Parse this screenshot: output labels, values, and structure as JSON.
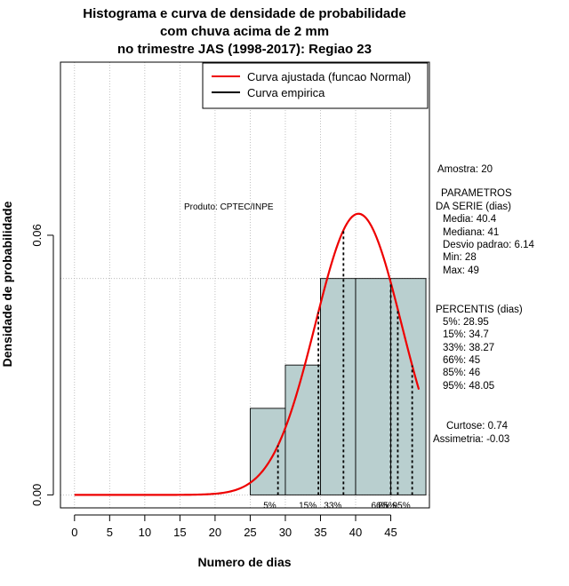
{
  "title_lines": [
    "Histograma e curva de densidade de probabilidade",
    "com chuva acima de 2 mm",
    "no trimestre JAS (1998-2017): Regiao 23"
  ],
  "product_label": "Produto: CPTEC/INPE",
  "side_panel": {
    "sample": "Amostra: 20",
    "params_title_1": "PARAMETROS",
    "params_title_2": "DA SERIE (dias)",
    "params": [
      "Media: 40.4",
      "Mediana: 41",
      "Desvio padrao: 6.14",
      "Min: 28",
      "Max: 49"
    ],
    "percentis_title": "PERCENTIS (dias)",
    "percentis": [
      "5%: 28.95",
      "15%: 34.7",
      "33%: 38.27",
      "66%: 45",
      "85%: 46",
      "95%: 48.05"
    ],
    "kurtosis": "Curtose: 0.74",
    "skewness": "Assimetria: -0.03"
  },
  "colors": {
    "bar_fill": "#b9cfcf",
    "normal_curve": "#ee0000",
    "grid": "#b0b0b0",
    "axis": "#000000"
  },
  "chart_data": {
    "type": "bar",
    "xlabel": "Numero de dias",
    "ylabel": "Densidade de probabilidade",
    "xlim": [
      -2,
      50.5
    ],
    "ylim": [
      -0.003,
      0.1
    ],
    "x_ticks": [
      0,
      5,
      10,
      15,
      20,
      25,
      30,
      35,
      40,
      45
    ],
    "y_ticks": [
      0.0,
      0.06
    ],
    "y_tick_labels": [
      "0.00",
      "0.06"
    ],
    "grid": true,
    "legend_position": "top-right",
    "legend": [
      {
        "label": "Curva ajustada (funcao Normal)",
        "color": "#ee0000"
      },
      {
        "label": "Curva empirica",
        "color": "#000000"
      }
    ],
    "histogram": {
      "bins": [
        {
          "start": 25,
          "end": 30,
          "density": 0.02
        },
        {
          "start": 30,
          "end": 35,
          "density": 0.03
        },
        {
          "start": 35,
          "end": 40,
          "density": 0.05
        },
        {
          "start": 40,
          "end": 45,
          "density": 0.05
        },
        {
          "start": 45,
          "end": 50,
          "density": 0.05
        }
      ]
    },
    "normal_fit": {
      "mean": 40.4,
      "sd": 6.14,
      "x_from": 0,
      "x_to": 49
    },
    "percentiles": [
      {
        "label": "5%",
        "value": 28.95
      },
      {
        "label": "15%",
        "value": 34.7
      },
      {
        "label": "33%",
        "value": 38.27
      },
      {
        "label": "66%",
        "value": 45
      },
      {
        "label": "85%",
        "value": 46
      },
      {
        "label": "95%",
        "value": 48.05
      }
    ]
  }
}
